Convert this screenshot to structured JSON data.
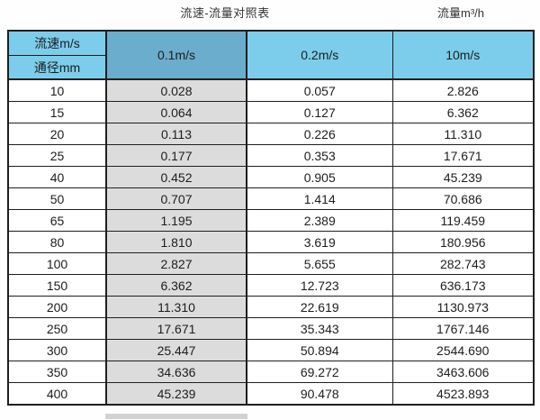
{
  "page": {
    "title": "流速-流量对照表",
    "unit_label": "流量m³/h"
  },
  "chart_data": {
    "type": "table",
    "title": "流速-流量对照表",
    "unit_label": "流量m³/h",
    "row_header_top": "流速m/s",
    "row_header_bottom": "通径mm",
    "columns": [
      "0.1m/s",
      "0.2m/s",
      "10m/s"
    ],
    "highlighted_column": "0.1m/s",
    "rows": [
      [
        "10",
        "0.028",
        "0.057",
        "2.826"
      ],
      [
        "15",
        "0.064",
        "0.127",
        "6.362"
      ],
      [
        "20",
        "0.113",
        "0.226",
        "11.310"
      ],
      [
        "25",
        "0.177",
        "0.353",
        "17.671"
      ],
      [
        "40",
        "0.452",
        "0.905",
        "45.239"
      ],
      [
        "50",
        "0.707",
        "1.414",
        "70.686"
      ],
      [
        "65",
        "1.195",
        "2.389",
        "119.459"
      ],
      [
        "80",
        "1.810",
        "3.619",
        "180.956"
      ],
      [
        "100",
        "2.827",
        "5.655",
        "282.743"
      ],
      [
        "150",
        "6.362",
        "12.723",
        "636.173"
      ],
      [
        "200",
        "11.310",
        "22.619",
        "1130.973"
      ],
      [
        "250",
        "17.671",
        "35.343",
        "1767.146"
      ],
      [
        "300",
        "25.447",
        "50.894",
        "2544.690"
      ],
      [
        "350",
        "34.636",
        "69.272",
        "3463.606"
      ],
      [
        "400",
        "45.239",
        "90.478",
        "4523.893"
      ]
    ]
  },
  "colors": {
    "header_blue": "#7CCDEB",
    "highlight_header_blue": "#6BADCC",
    "highlight_gray": "#DCDCDC",
    "border_dark": "#1F1F1F",
    "text": "#1D1D1D"
  }
}
